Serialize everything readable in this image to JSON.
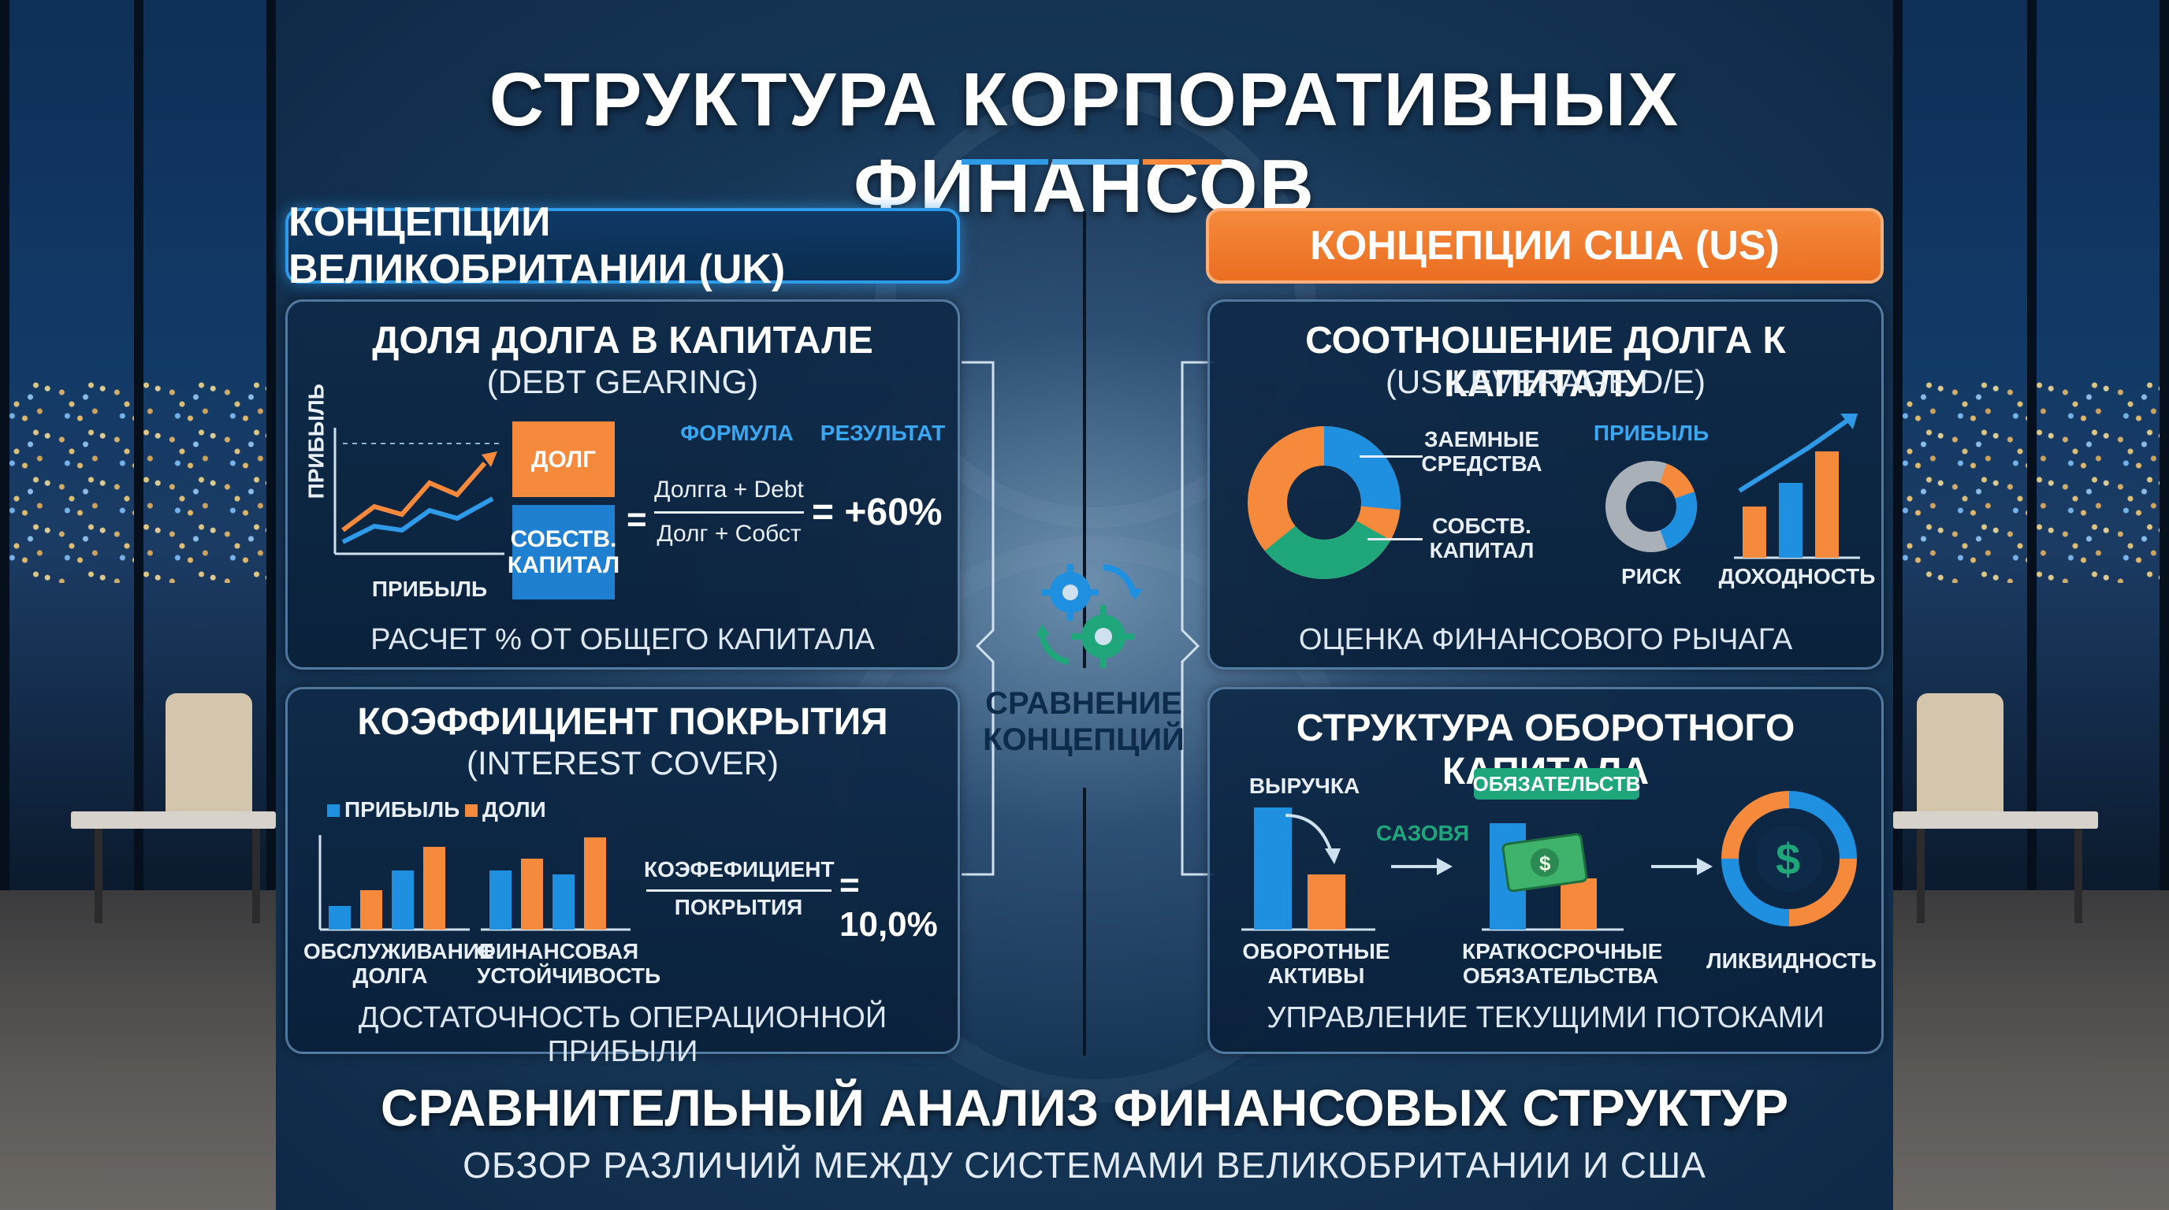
{
  "title": "СТРУКТУРА КОРПОРАТИВНЫХ ФИНАНСОВ",
  "colors": {
    "accent_blue": "#2f9be8",
    "accent_orange": "#f58a3c",
    "accent_green": "#1fa67a",
    "navy": "#0e2946"
  },
  "uk": {
    "header": "КОНЦЕПЦИИ ВЕЛИКОБРИТАНИИ (UK)",
    "debt_gearing": {
      "title": "ДОЛЯ ДОЛГА В КАПИТАЛЕ",
      "subtitle": "(DEBT GEARING)",
      "chart_ylabel": "ПРИБЫЛЬ",
      "chart_xlabel": "ПРИБЫЛЬ",
      "box_debt": "ДОЛГ",
      "box_equity": "СОБСТВ. КАПИТАЛ",
      "formula_label": "ФОРМУЛА",
      "result_label": "РЕЗУЛЬТАТ",
      "numerator": "Долгга + Debt",
      "denominator": "Долг + Собст",
      "equals": "=",
      "result": "= +60%",
      "footer": "РАСЧЕТ % ОТ ОБЩЕГО КАПИТАЛА"
    },
    "interest_cover": {
      "title": "КОЭФФИЦИЕНТ ПОКРЫТИЯ",
      "subtitle": "(INTEREST COVER)",
      "legend_profit": "ПРИБЫЛЬ",
      "legend_shares": "ДОЛИ",
      "chart1_label": "ОБСЛУЖИВАНИЕ ДОЛГА",
      "chart2_label": "ФИНАНСОВАЯ УСТОЙЧИВОСТЬ",
      "ratio_top": "КОЭФЕФИЦИЕНТ",
      "ratio_bottom": "ПОКРЫТИЯ",
      "result": "= 10,0%",
      "footer": "ДОСТАТОЧНОСТЬ ОПЕРАЦИОННОЙ ПРИБЫЛИ"
    }
  },
  "center": {
    "label": "СРАВНЕНИЕ КОНЦЕПЦИЙ",
    "icon": "gears-cycle-icon"
  },
  "us": {
    "header": "КОНЦЕПЦИИ США (US)",
    "leverage": {
      "title": "СООТНОШЕНИЕ ДОЛГА К КАПИТАЛУ",
      "subtitle": "(US LEVERAGE D/E)",
      "donut_label_top": "ЗАЕМНЫЕ СРЕДСТВА",
      "donut_label_bottom": "СОБСТВ. КАПИТАЛ",
      "profit_label": "ПРИБЫЛЬ",
      "risk_label": "РИСК",
      "return_label": "ДОХОДНОСТЬ",
      "footer": "ОЦЕНКА ФИНАНСОВОГО РЫЧАГА"
    },
    "working_capital": {
      "title": "СТРУКТУРА ОБОРОТНОГО КАПИТАЛА",
      "revenue_label": "ВЫРУЧКА",
      "arrow_label": "САЗОВЯ",
      "liabilities_badge": "ОБЯЗАТЕЛЬСТВ",
      "current_assets": "ОБОРОТНЫЕ АКТИВЫ",
      "short_term_liabilities": "КРАТКОСРОЧНЫЕ ОБЯЗАТЕЛЬСТВА",
      "liquidity": "ЛИКВИДНОСТЬ",
      "footer": "УПРАВЛЕНИЕ ТЕКУЩИМИ ПОТОКАМИ"
    }
  },
  "footer": {
    "title": "СРАВНИТЕЛЬНЫЙ АНАЛИЗ ФИНАНСОВЫХ СТРУКТУР",
    "subtitle": "ОБЗОР РАЗЛИЧИЙ МЕЖДУ СИСТЕМАМИ ВЕЛИКОБРИТАНИИ И США"
  }
}
